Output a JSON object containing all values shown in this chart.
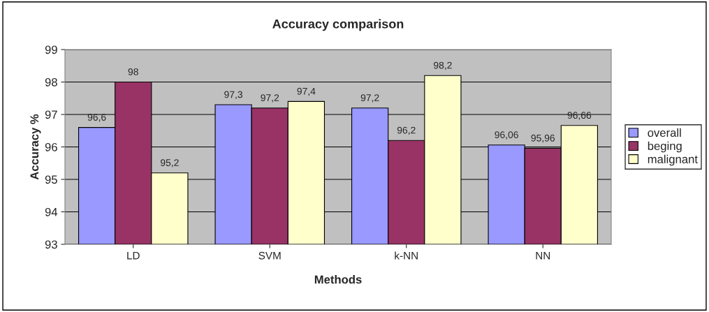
{
  "chart_data": {
    "type": "bar",
    "title": "Accuracy comparison",
    "xlabel": "Methods",
    "ylabel": "Accuracy %",
    "categories": [
      "LD",
      "SVM",
      "k-NN",
      "NN"
    ],
    "series": [
      {
        "name": "overall",
        "color": "#9999ff",
        "values": [
          96.6,
          97.3,
          97.2,
          96.06
        ],
        "value_labels": [
          "96,6",
          "97,3",
          "97,2",
          "96,06"
        ]
      },
      {
        "name": "beging",
        "color": "#993366",
        "values": [
          98,
          97.2,
          96.2,
          95.96
        ],
        "value_labels": [
          "98",
          "97,2",
          "96,2",
          "95,96"
        ]
      },
      {
        "name": "malignant",
        "color": "#ffffcc",
        "values": [
          95.2,
          97.4,
          98.2,
          96.66
        ],
        "value_labels": [
          "95,2",
          "97,4",
          "98,2",
          "96,66"
        ]
      }
    ],
    "ylim": [
      93,
      99
    ],
    "yticks": [
      93,
      94,
      95,
      96,
      97,
      98,
      99
    ],
    "grid": "y",
    "legend": "right"
  }
}
